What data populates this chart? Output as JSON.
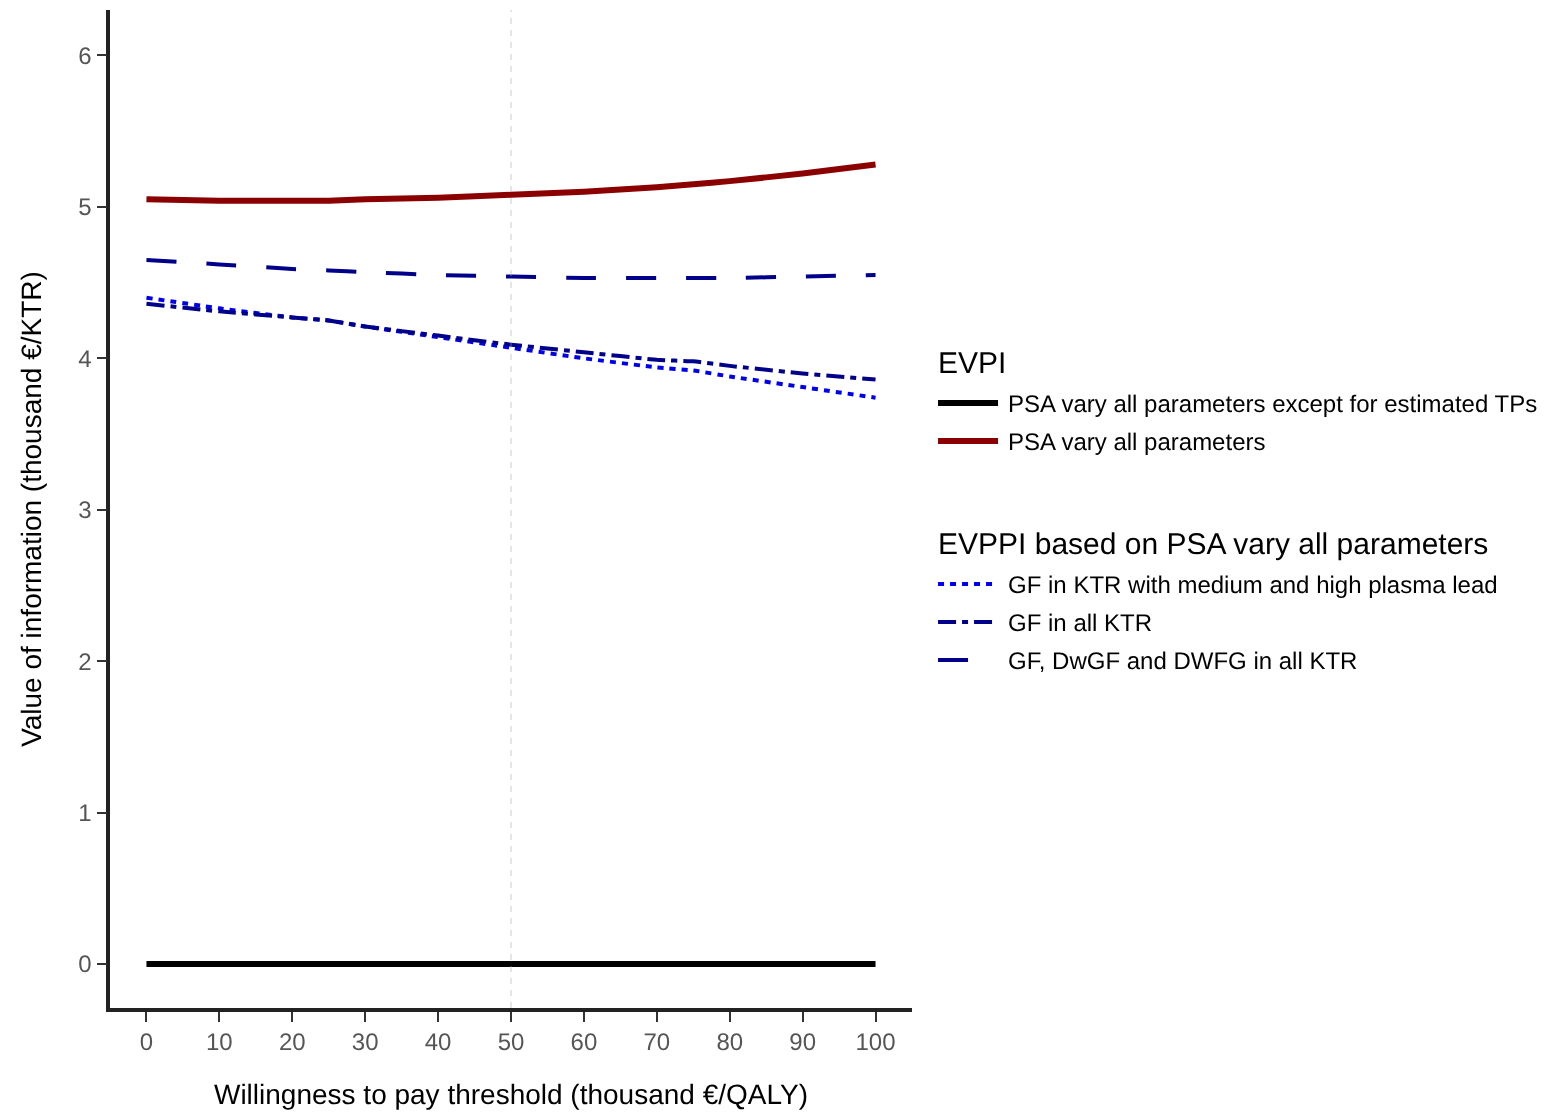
{
  "chart_data": {
    "type": "line",
    "xlabel": "Willingness to pay threshold (thousand €/QALY)",
    "ylabel": "Value of information (thousand €/KTR)",
    "legend_title": [
      "EVPI",
      "EVPPI based on PSA vary all parameters"
    ],
    "x": [
      0,
      10,
      20,
      25,
      30,
      40,
      50,
      60,
      70,
      75,
      80,
      90,
      100
    ],
    "series": [
      {
        "name": "PSA vary all parameters except for estimated TPs",
        "color": "#000000",
        "line_style": "solid",
        "values": [
          0,
          0,
          0,
          0,
          0,
          0,
          0,
          0,
          0,
          0,
          0,
          0,
          0
        ]
      },
      {
        "name": "PSA vary all parameters",
        "color": "#8b0000",
        "line_style": "solid",
        "values": [
          5.05,
          5.04,
          5.04,
          5.04,
          5.05,
          5.06,
          5.08,
          5.1,
          5.13,
          5.15,
          5.17,
          5.22,
          5.28
        ]
      },
      {
        "name": "GF in KTR with medium and high plasma lead",
        "color": "#0000ee",
        "line_style": "dotted",
        "values": [
          4.4,
          4.33,
          4.27,
          4.25,
          4.21,
          4.14,
          4.07,
          4.0,
          3.94,
          3.92,
          3.88,
          3.81,
          3.74
        ]
      },
      {
        "name": "GF in all KTR",
        "color": "#00008b",
        "line_style": "dashdot",
        "values": [
          4.36,
          4.31,
          4.27,
          4.25,
          4.21,
          4.15,
          4.09,
          4.04,
          3.99,
          3.98,
          3.95,
          3.9,
          3.86
        ]
      },
      {
        "name": "GF, DwGF and DWFG in all KTR",
        "color": "#00008b",
        "line_style": "longdash",
        "values": [
          4.65,
          4.62,
          4.59,
          4.58,
          4.57,
          4.55,
          4.54,
          4.53,
          4.53,
          4.53,
          4.53,
          4.54,
          4.55
        ]
      }
    ],
    "ref_lines": [
      {
        "axis": "x",
        "value": 50,
        "color": "#aaaaaa",
        "line_style": "dotted"
      }
    ],
    "xlim": [
      -5,
      105
    ],
    "xticks": [
      0,
      10,
      20,
      30,
      40,
      50,
      60,
      70,
      80,
      90,
      100
    ],
    "ylim": [
      -0.29,
      6.3
    ],
    "yticks": [
      0,
      1,
      2,
      3,
      4,
      5,
      6
    ],
    "grid": false,
    "legend": "right",
    "marker": "none"
  }
}
